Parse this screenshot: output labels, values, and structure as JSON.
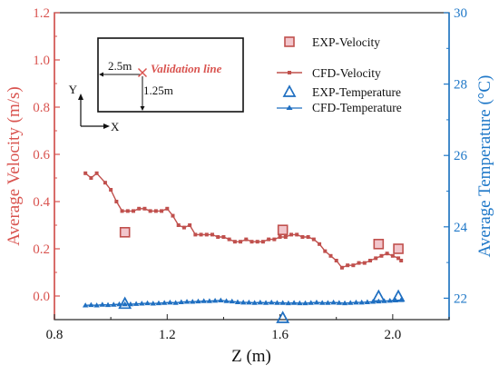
{
  "chart_data": {
    "type": "line",
    "xlabel": "Z (m)",
    "ylabel_left": "Average Velocity (m/s)",
    "ylabel_right": "Average Temperature (°C)",
    "xlim": [
      0.8,
      2.2
    ],
    "ylim_left": [
      -0.1,
      1.2
    ],
    "ylim_right": [
      21.4,
      30
    ],
    "x_ticks": [
      0.8,
      1.2,
      1.6,
      2.0
    ],
    "x_tick_labels": [
      "0.8",
      "1.2",
      "1.6",
      "2.0"
    ],
    "y_left_ticks": [
      0.0,
      0.2,
      0.4,
      0.6,
      0.8,
      1.0,
      1.2
    ],
    "y_left_tick_labels": [
      "0.0",
      "0.2",
      "0.4",
      "0.6",
      "0.8",
      "1.0",
      "1.2"
    ],
    "y_right_ticks": [
      22,
      24,
      26,
      28,
      30
    ],
    "y_right_tick_labels": [
      "22",
      "24",
      "26",
      "28",
      "30"
    ],
    "colors": {
      "velocity": "#c0504d",
      "velocity_marker_fill": "#f2c6cc",
      "temperature": "#1f6fc1",
      "left_axis": "#d9534f",
      "right_axis": "#1f78c8"
    },
    "legend": {
      "position": "top-right",
      "entries": [
        "EXP-Velocity",
        "CFD-Velocity",
        "EXP-Temperature",
        "CFD-Temperature"
      ]
    },
    "series": [
      {
        "name": "EXP-Velocity",
        "axis": "left",
        "kind": "marker-square",
        "x": [
          1.05,
          1.61,
          1.95,
          2.02
        ],
        "y": [
          0.27,
          0.28,
          0.22,
          0.2
        ]
      },
      {
        "name": "CFD-Velocity",
        "axis": "left",
        "kind": "line-square",
        "x": [
          0.91,
          0.93,
          0.95,
          0.98,
          1.0,
          1.02,
          1.04,
          1.06,
          1.08,
          1.1,
          1.12,
          1.14,
          1.16,
          1.18,
          1.2,
          1.22,
          1.24,
          1.26,
          1.28,
          1.3,
          1.32,
          1.34,
          1.36,
          1.38,
          1.4,
          1.42,
          1.44,
          1.46,
          1.48,
          1.5,
          1.52,
          1.54,
          1.56,
          1.58,
          1.6,
          1.62,
          1.64,
          1.66,
          1.68,
          1.7,
          1.72,
          1.74,
          1.76,
          1.78,
          1.8,
          1.82,
          1.84,
          1.86,
          1.88,
          1.9,
          1.92,
          1.94,
          1.96,
          1.98,
          2.0,
          2.02,
          2.03
        ],
        "y": [
          0.52,
          0.5,
          0.52,
          0.48,
          0.45,
          0.4,
          0.36,
          0.36,
          0.36,
          0.37,
          0.37,
          0.36,
          0.36,
          0.36,
          0.37,
          0.34,
          0.3,
          0.29,
          0.3,
          0.26,
          0.26,
          0.26,
          0.26,
          0.25,
          0.25,
          0.24,
          0.23,
          0.23,
          0.24,
          0.23,
          0.23,
          0.23,
          0.24,
          0.24,
          0.25,
          0.25,
          0.26,
          0.26,
          0.25,
          0.25,
          0.24,
          0.22,
          0.19,
          0.17,
          0.15,
          0.12,
          0.13,
          0.13,
          0.14,
          0.14,
          0.15,
          0.16,
          0.17,
          0.18,
          0.17,
          0.16,
          0.15
        ]
      },
      {
        "name": "EXP-Temperature",
        "axis": "right",
        "kind": "marker-triangle",
        "x": [
          1.05,
          1.61,
          1.95,
          2.02
        ],
        "y": [
          21.85,
          21.45,
          22.05,
          22.05
        ]
      },
      {
        "name": "CFD-Temperature",
        "axis": "right",
        "kind": "line-triangle",
        "x": [
          0.91,
          0.93,
          0.95,
          0.97,
          0.99,
          1.01,
          1.03,
          1.05,
          1.07,
          1.09,
          1.11,
          1.13,
          1.15,
          1.17,
          1.19,
          1.21,
          1.23,
          1.25,
          1.27,
          1.29,
          1.31,
          1.33,
          1.35,
          1.37,
          1.39,
          1.41,
          1.43,
          1.45,
          1.47,
          1.49,
          1.51,
          1.53,
          1.55,
          1.57,
          1.59,
          1.61,
          1.63,
          1.65,
          1.67,
          1.69,
          1.71,
          1.73,
          1.75,
          1.77,
          1.79,
          1.81,
          1.83,
          1.85,
          1.87,
          1.89,
          1.91,
          1.93,
          1.95,
          1.97,
          1.99,
          2.01,
          2.03
        ],
        "y": [
          21.8,
          21.81,
          21.8,
          21.82,
          21.81,
          21.82,
          21.83,
          21.83,
          21.83,
          21.84,
          21.85,
          21.86,
          21.85,
          21.86,
          21.87,
          21.88,
          21.87,
          21.89,
          21.9,
          21.9,
          21.91,
          21.92,
          21.92,
          21.93,
          21.94,
          21.92,
          21.91,
          21.89,
          21.88,
          21.88,
          21.87,
          21.88,
          21.87,
          21.88,
          21.87,
          21.87,
          21.86,
          21.87,
          21.86,
          21.86,
          21.87,
          21.88,
          21.87,
          21.87,
          21.88,
          21.87,
          21.86,
          21.87,
          21.88,
          21.88,
          21.89,
          21.9,
          21.91,
          21.92,
          21.93,
          21.94,
          21.95
        ]
      }
    ],
    "inset": {
      "dim_horizontal": "2.5m",
      "dim_vertical": "1.25m",
      "marker_label": "Validation line",
      "axis_y": "Y",
      "axis_x": "X"
    }
  }
}
